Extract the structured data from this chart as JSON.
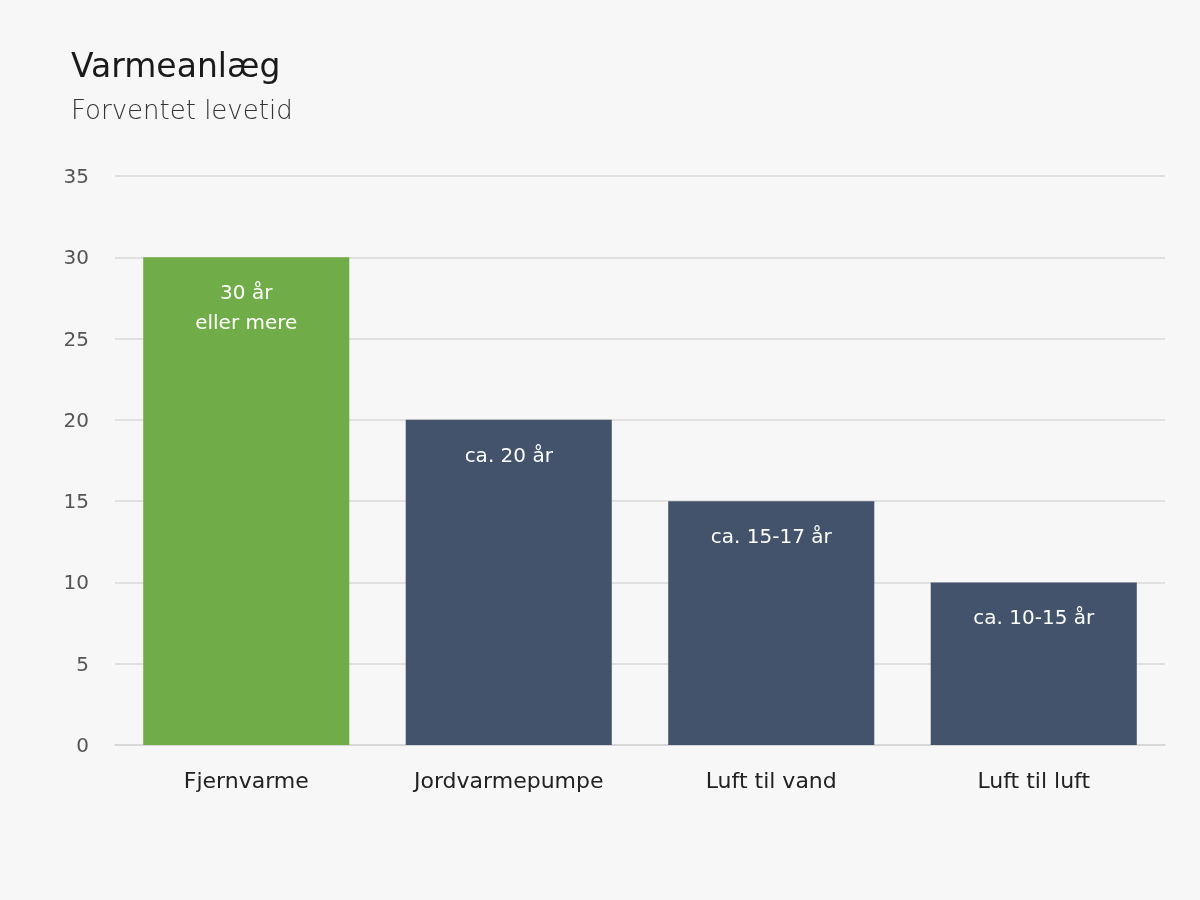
{
  "chart_data": {
    "type": "bar",
    "title": "Varmeanlæg",
    "subtitle": "Forventet levetid",
    "categories": [
      "Fjernvarme",
      "Jordvarmepumpe",
      "Luft til vand",
      "Luft til luft"
    ],
    "values": [
      30,
      20,
      15,
      10
    ],
    "colors": [
      "#70ac47",
      "#42536b",
      "#42536b",
      "#42536b"
    ],
    "value_labels": [
      "30 år\neller mere",
      "ca. 20 år",
      "ca. 15-17 år",
      "ca. 10-15 år"
    ],
    "ylim": [
      0,
      35
    ],
    "yticks": [
      0,
      5,
      10,
      15,
      20,
      25,
      30,
      35
    ],
    "grid": "y"
  }
}
